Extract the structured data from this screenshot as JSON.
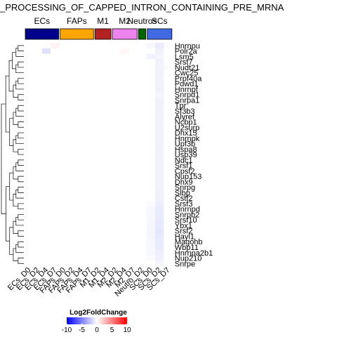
{
  "chart_data": {
    "type": "heatmap",
    "title": "_PROCESSING_OF_CAPPED_INTRON_CONTAINING_PRE_MRNA",
    "column_groups": [
      {
        "label": "ECs",
        "color": "#00008B",
        "columns": [
          0,
          1,
          2,
          3
        ]
      },
      {
        "label": "FAPs",
        "color": "#FFA500",
        "columns": [
          4,
          5,
          6,
          7
        ]
      },
      {
        "label": "M1",
        "color": "#B22222",
        "columns": [
          8,
          9
        ]
      },
      {
        "label": "M2",
        "color": "#EE82EE",
        "columns": [
          10,
          11,
          12
        ]
      },
      {
        "label": "Neutros",
        "color": "#006400",
        "columns": [
          13
        ]
      },
      {
        "label": "SCs",
        "color": "#4169E1",
        "columns": [
          14,
          15,
          16
        ]
      }
    ],
    "columns": [
      "ECs_D0",
      "ECs_D2",
      "ECs_D4",
      "ECs_D7",
      "FAPs_D0",
      "FAPs_D2",
      "FAPs_D4",
      "FAPs_D7",
      "M1_D2",
      "M1_D4",
      "M2_D2",
      "M2_D4",
      "M2_D7",
      "Neutro_D2",
      "SCs_D0",
      "SCs_D2",
      "SCs_D7"
    ],
    "rows": [
      "Hnrnpu",
      "Polr2a",
      "Lsm5",
      "Srsf7",
      "Nudt21",
      "Cwc25",
      "Prpf40a",
      "Pdwd1",
      "Hnrnpf",
      "Snrpd1",
      "Snrpa1",
      "Tpr",
      "Sf3b3",
      "Alyref",
      "Ncbp1",
      "U2surp",
      "Dhx15",
      "Hnrnpk",
      "Upf3b",
      "Hspa8",
      "Usp39",
      "Ndc1",
      "Srsf1",
      "Cpsf2",
      "Nup153",
      "Dhx9",
      "Snrpg",
      "Slbp",
      "Cstf2",
      "Srsf3",
      "Hnrnpd",
      "Snrpb2",
      "Srsf10",
      "Ybx1",
      "Srsf2",
      "Hayl1",
      "Magohb",
      "Wbp11",
      "Hnrnpa2b1",
      "Nup210",
      "Snrpe"
    ],
    "values": [
      [
        0,
        0,
        0,
        0.5,
        0,
        0,
        0,
        0,
        0,
        0,
        0,
        0,
        0,
        0,
        -0.3,
        -0.8,
        -0.2
      ],
      [
        0,
        0,
        -1.2,
        0,
        0,
        0,
        0,
        0,
        0,
        0,
        0,
        0.3,
        0,
        0,
        0,
        -0.6,
        0
      ],
      [
        0,
        0,
        0,
        0,
        0,
        0,
        0,
        0,
        0,
        0,
        0,
        0,
        0,
        0,
        -0.5,
        -0.4,
        0
      ],
      [
        0,
        0,
        0,
        0,
        0,
        0,
        0,
        0,
        0,
        0,
        0,
        0,
        0,
        0,
        0,
        -0.6,
        0
      ],
      [
        0,
        0,
        0,
        0,
        0,
        0,
        0,
        0,
        0,
        0,
        0,
        0,
        0,
        0,
        0,
        -0.5,
        -0.2
      ],
      [
        0,
        0,
        0,
        0,
        0,
        0,
        0,
        0,
        0,
        0,
        0,
        0,
        0,
        0,
        0,
        -0.6,
        0
      ],
      [
        0,
        0,
        0,
        0,
        0,
        0,
        0,
        0,
        0,
        0,
        0,
        0,
        0,
        0,
        0,
        -0.5,
        0
      ],
      [
        0,
        0,
        0,
        0,
        0,
        0,
        0,
        0,
        0,
        0,
        0,
        0,
        0,
        0,
        0,
        -0.5,
        0
      ],
      [
        0,
        0,
        0,
        0,
        0,
        0,
        0,
        0,
        0,
        0,
        0,
        0,
        0,
        0,
        0,
        -0.6,
        0
      ],
      [
        0,
        0,
        0,
        0,
        0,
        0,
        0,
        0,
        0,
        0,
        0,
        0,
        0,
        0,
        0,
        -0.4,
        0
      ],
      [
        0,
        0,
        0,
        0,
        0,
        0,
        0,
        0,
        0,
        0,
        0,
        0,
        0,
        0,
        0,
        -0.6,
        0
      ],
      [
        0,
        0,
        0,
        0,
        0,
        0,
        0,
        0,
        0,
        0,
        0,
        0,
        0,
        0,
        0,
        -0.6,
        0
      ],
      [
        0,
        0,
        0,
        0,
        0,
        0,
        0,
        0,
        0,
        0,
        0,
        0,
        0,
        0,
        0,
        -0.5,
        0
      ],
      [
        0,
        0,
        0,
        0,
        0,
        0,
        0,
        0,
        0,
        0,
        0,
        0,
        0,
        0,
        0,
        -0.5,
        0
      ],
      [
        0,
        0,
        0,
        0,
        0,
        0,
        0,
        0,
        0,
        0,
        0,
        0,
        0,
        0,
        0,
        -0.6,
        0
      ],
      [
        0,
        0,
        0,
        0,
        0,
        0,
        0,
        0,
        0,
        0,
        0,
        0,
        0,
        0,
        0,
        -0.5,
        0
      ],
      [
        0,
        0,
        0,
        0,
        0,
        0,
        0,
        0,
        0,
        0,
        0,
        0,
        0,
        0,
        0,
        -0.5,
        0
      ],
      [
        0,
        0,
        0,
        0,
        0,
        0,
        0,
        0,
        0,
        0,
        0,
        0,
        0,
        0,
        0,
        -0.5,
        0
      ],
      [
        0,
        0,
        0,
        0,
        0,
        0,
        0,
        0,
        0,
        0,
        0,
        0,
        0,
        0,
        0,
        -0.5,
        0
      ],
      [
        0,
        0,
        0,
        0,
        0,
        0,
        0,
        0,
        0,
        0,
        0,
        0,
        0,
        0,
        0,
        -0.6,
        0
      ],
      [
        0,
        0,
        0,
        0,
        0,
        0,
        0,
        0,
        0,
        0,
        0,
        0,
        0,
        0,
        0,
        -0.6,
        0
      ],
      [
        0,
        0,
        0,
        0,
        0,
        0,
        0,
        0,
        0,
        0,
        0,
        0,
        0,
        0,
        0,
        -0.5,
        0
      ],
      [
        0,
        0,
        0,
        0,
        0,
        0,
        0,
        0,
        0,
        0,
        0,
        0,
        0,
        0,
        0,
        -0.5,
        0
      ],
      [
        0,
        0,
        0,
        0,
        0,
        0,
        0,
        0,
        0,
        0,
        0,
        0,
        0,
        0,
        0,
        -0.5,
        0
      ],
      [
        0,
        0,
        0,
        0,
        0,
        0,
        0,
        0,
        0,
        0,
        0,
        0,
        0,
        0,
        0,
        -0.5,
        0
      ],
      [
        0,
        0,
        0,
        0,
        0,
        0,
        0,
        0,
        0,
        0,
        0,
        0,
        0,
        0,
        0,
        -0.5,
        0
      ],
      [
        0,
        0,
        0,
        0,
        0,
        0,
        0,
        0,
        0,
        0,
        0,
        0,
        0,
        0,
        0,
        -0.5,
        0
      ],
      [
        0,
        0,
        0,
        0,
        0,
        0,
        0,
        0,
        0,
        0,
        0,
        0,
        0,
        0,
        0,
        -0.6,
        0
      ],
      [
        0,
        0,
        0,
        0,
        0,
        0,
        0,
        0,
        0,
        0,
        0,
        0,
        0,
        0,
        0,
        -0.6,
        0
      ],
      [
        0,
        0,
        0,
        0,
        0,
        0,
        0,
        0,
        0,
        0,
        0,
        0,
        0,
        0,
        -0.2,
        -0.7,
        0
      ],
      [
        0,
        0,
        0,
        0,
        0,
        0,
        0,
        0,
        0,
        0,
        0,
        0,
        0,
        0,
        -0.3,
        -0.8,
        0
      ],
      [
        0,
        0,
        0,
        0,
        0,
        0,
        0,
        0,
        0,
        0,
        0,
        0,
        0,
        0,
        -0.3,
        -0.8,
        0
      ],
      [
        0,
        0,
        0,
        0,
        0,
        0,
        0,
        0,
        0,
        0,
        0,
        0,
        0,
        0,
        -0.3,
        -0.9,
        0
      ],
      [
        0,
        0,
        0,
        0,
        0,
        0,
        0,
        0,
        0,
        0,
        0,
        0,
        0,
        0,
        -0.4,
        -0.9,
        0
      ],
      [
        0,
        0,
        0,
        0,
        0,
        0,
        0,
        0,
        0,
        0,
        0,
        0,
        0,
        0,
        -0.4,
        -1.0,
        0
      ],
      [
        0,
        0,
        0,
        0,
        0,
        0,
        0,
        0,
        0,
        0,
        0,
        0,
        0,
        0,
        -0.4,
        -0.9,
        0
      ],
      [
        0,
        0,
        0,
        0,
        0,
        0,
        0,
        0,
        0,
        0,
        0,
        0,
        0,
        0,
        -0.3,
        -0.8,
        0
      ],
      [
        0,
        0,
        0,
        0,
        0,
        0,
        0,
        0,
        0,
        0,
        0,
        0,
        0,
        0,
        -0.3,
        -0.8,
        0
      ],
      [
        0,
        0,
        0,
        0,
        0,
        0,
        0,
        0,
        0,
        0,
        0,
        0,
        0,
        0,
        -0.3,
        -0.7,
        0
      ],
      [
        0,
        0,
        0,
        0,
        0,
        0,
        0,
        0,
        0,
        0,
        0,
        0,
        0,
        0,
        -0.2,
        -0.6,
        0
      ],
      [
        0,
        0,
        0,
        0,
        0,
        0,
        0,
        0,
        0,
        0,
        0,
        0,
        0,
        0,
        0,
        -0.4,
        0
      ]
    ],
    "legend": {
      "title": "Log2FoldChange",
      "ticks": [
        -10,
        -5,
        0,
        5,
        10
      ],
      "range": [
        -10,
        10
      ],
      "low_color": "#0000FF",
      "mid_color": "#FFFFFF",
      "high_color": "#FF0000"
    },
    "row_dendrogram": true,
    "column_dendrogram": false
  }
}
